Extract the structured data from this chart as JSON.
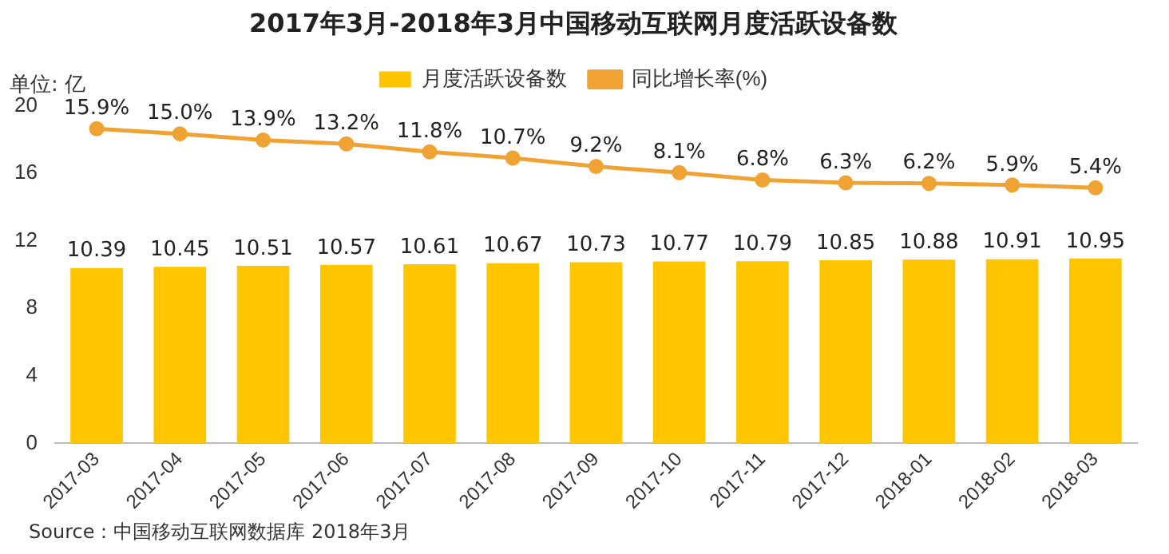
{
  "chart_data": {
    "type": "bar",
    "title": "2017年3月-2018年3月中国移动互联网月度活跃设备数",
    "ylabel": "单位: 亿",
    "categories": [
      "2017-03",
      "2017-04",
      "2017-05",
      "2017-06",
      "2017-07",
      "2017-08",
      "2017-09",
      "2017-10",
      "2017-11",
      "2017-12",
      "2018-01",
      "2018-02",
      "2018-03"
    ],
    "series": [
      {
        "name": "月度活跃设备数",
        "color": "#ffc600",
        "values": [
          10.39,
          10.45,
          10.51,
          10.57,
          10.61,
          10.67,
          10.73,
          10.77,
          10.79,
          10.85,
          10.88,
          10.91,
          10.95
        ]
      },
      {
        "name": "同比增长率(%)",
        "type": "line",
        "axis": "y2",
        "color": "#f0a232",
        "values": [
          15.9,
          15.0,
          13.9,
          13.2,
          11.8,
          10.7,
          9.2,
          8.1,
          6.8,
          6.3,
          6.2,
          5.9,
          5.4
        ],
        "value_labels": [
          "15.9%",
          "15.0%",
          "13.9%",
          "13.2%",
          "11.8%",
          "10.7%",
          "9.2%",
          "8.1%",
          "6.8%",
          "6.3%",
          "6.2%",
          "5.9%",
          "5.4%"
        ]
      }
    ],
    "ylim": [
      0,
      20
    ],
    "yticks": [
      0,
      4,
      8,
      12,
      16,
      20
    ],
    "tick_labels": "xy",
    "data_labels": true,
    "legend": "top",
    "grid": false,
    "marker": "circle",
    "line_style": "solid",
    "annotations": [
      "Source：中国移动互联网数据库 2018年3月"
    ]
  }
}
